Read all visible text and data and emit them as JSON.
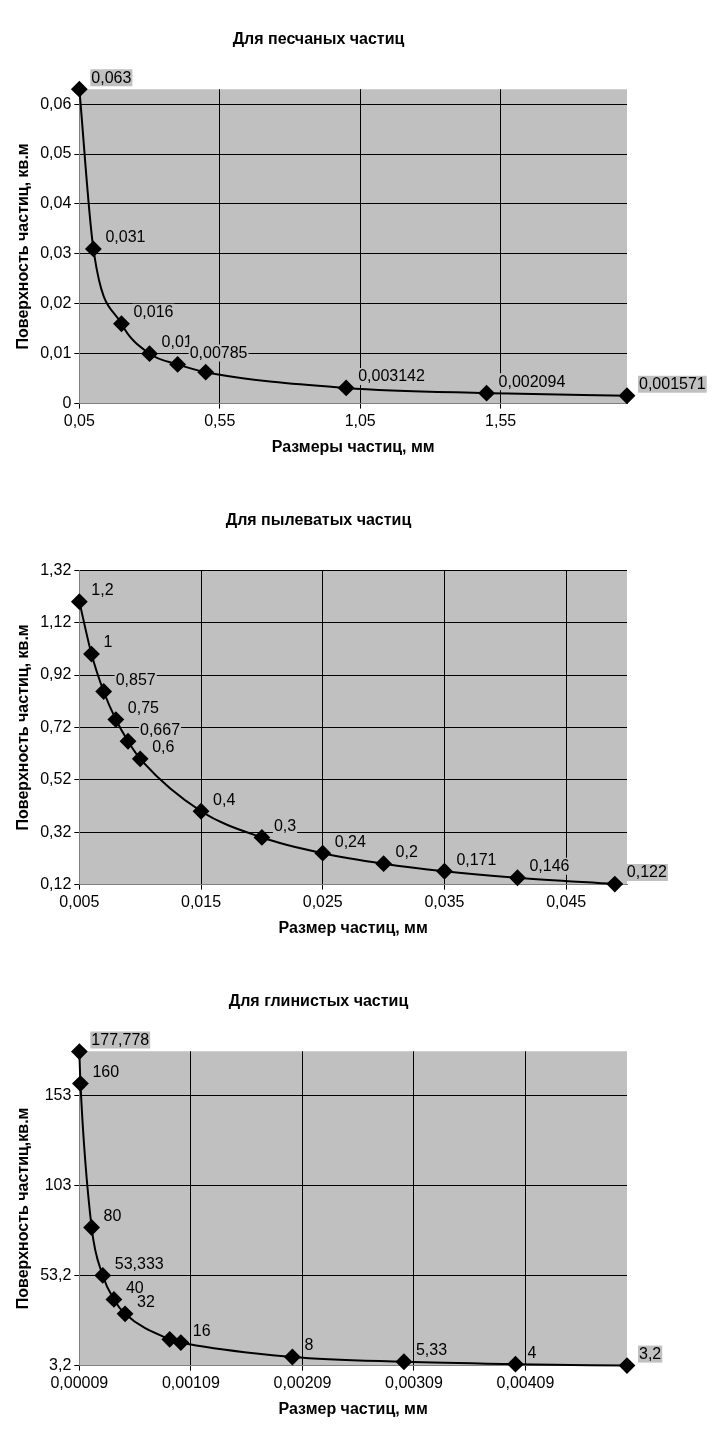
{
  "chart_data": [
    {
      "type": "line",
      "title": "Для песчаных частиц",
      "xlabel": "Размеры частиц, мм",
      "ylabel": "Поверхность частиц, кв.м",
      "marker": "diamond",
      "grid": true,
      "color": "#000000",
      "x": [
        0.05,
        0.1,
        0.2,
        0.3,
        0.4,
        0.5,
        1,
        1.5,
        2
      ],
      "values": [
        0.063,
        0.031,
        0.016,
        0.01,
        0.00785,
        0.0063,
        0.003142,
        0.002094,
        0.001571
      ],
      "value_labels": [
        "0,063",
        "0,031",
        "0,016",
        "0,01",
        "0,00785",
        null,
        "0,003142",
        "0,002094",
        "0,001571"
      ],
      "xlim": [
        0.05,
        2
      ],
      "xticks": [
        {
          "value": 0.05,
          "label": "0,05"
        },
        {
          "value": 0.55,
          "label": "0,55"
        },
        {
          "value": 1.05,
          "label": "1,05"
        },
        {
          "value": 1.55,
          "label": "1,55"
        }
      ],
      "ylim": [
        0,
        0.063
      ],
      "yticks": [
        0,
        {
          "value": 0.01,
          "label": "0,01"
        },
        {
          "value": 0.02,
          "label": "0,02"
        },
        {
          "value": 0.03,
          "label": "0,03"
        },
        {
          "value": 0.04,
          "label": "0,04"
        },
        {
          "value": 0.05,
          "label": "0,05"
        },
        {
          "value": 0.06,
          "label": "0,06"
        }
      ]
    },
    {
      "type": "line",
      "title": "Для пылеватых частиц",
      "xlabel": "Размер частиц, мм",
      "ylabel": "Поверхность частиц, кв.м",
      "marker": "diamond",
      "grid": true,
      "color": "#000000",
      "x": [
        0.005,
        0.006,
        0.007,
        0.008,
        0.009,
        0.01,
        0.015,
        0.02,
        0.025,
        0.03,
        0.035,
        0.041,
        0.049
      ],
      "values": [
        1.2,
        1,
        0.857,
        0.75,
        0.667,
        0.6,
        0.4,
        0.3,
        0.24,
        0.2,
        0.171,
        0.146,
        0.122
      ],
      "value_labels": [
        "1,2",
        "1",
        "0,857",
        "0,75",
        "0,667",
        "0,6",
        "0,4",
        "0,3",
        "0,24",
        "0,2",
        "0,171",
        "0,146",
        "0,122"
      ],
      "xlim": [
        0.005,
        0.05
      ],
      "xticks": [
        {
          "value": 0.005,
          "label": "0,005"
        },
        {
          "value": 0.015,
          "label": "0,015"
        },
        {
          "value": 0.025,
          "label": "0,025"
        },
        {
          "value": 0.035,
          "label": "0,035"
        },
        {
          "value": 0.045,
          "label": "0,045"
        }
      ],
      "ylim": [
        0.12,
        1.32
      ],
      "yticks": [
        {
          "value": 0.12,
          "label": "0,12"
        },
        {
          "value": 0.32,
          "label": "0,32"
        },
        {
          "value": 0.52,
          "label": "0,52"
        },
        {
          "value": 0.72,
          "label": "0,72"
        },
        {
          "value": 0.92,
          "label": "0,92"
        },
        {
          "value": 1.12,
          "label": "1,12"
        },
        {
          "value": 1.32,
          "label": "1,32"
        }
      ]
    },
    {
      "type": "line",
      "title": "Для глинистых частиц",
      "xlabel": "Размер частиц, мм",
      "ylabel": "Поверхность частиц,кв.м",
      "marker": "diamond",
      "grid": true,
      "color": "#000000",
      "x": [
        9e-05,
        0.0001,
        0.0002,
        0.0003,
        0.0004,
        0.0005,
        0.0009,
        0.001,
        0.002,
        0.003,
        0.004,
        0.005
      ],
      "values": [
        177.778,
        160,
        80,
        53.333,
        40,
        32,
        17.8,
        16,
        8,
        5.33,
        4,
        3.2
      ],
      "value_labels": [
        "177,778",
        "160",
        "80",
        "53,333",
        "40",
        "32",
        null,
        "16",
        "8",
        "5,33",
        "4",
        "3,2"
      ],
      "xlim": [
        9e-05,
        0.005
      ],
      "xticks": [
        {
          "value": 9e-05,
          "label": "0,00009"
        },
        {
          "value": 0.00109,
          "label": "0,00109"
        },
        {
          "value": 0.00209,
          "label": "0,00209"
        },
        {
          "value": 0.00309,
          "label": "0,00309"
        },
        {
          "value": 0.00409,
          "label": "0,00409"
        }
      ],
      "ylim": [
        3.2,
        178
      ],
      "yticks": [
        {
          "value": 3.2,
          "label": "3,2"
        },
        {
          "value": 53.2,
          "label": "53,2"
        },
        {
          "value": 103.2,
          "label": "103"
        },
        {
          "value": 153.2,
          "label": "153"
        }
      ]
    }
  ]
}
